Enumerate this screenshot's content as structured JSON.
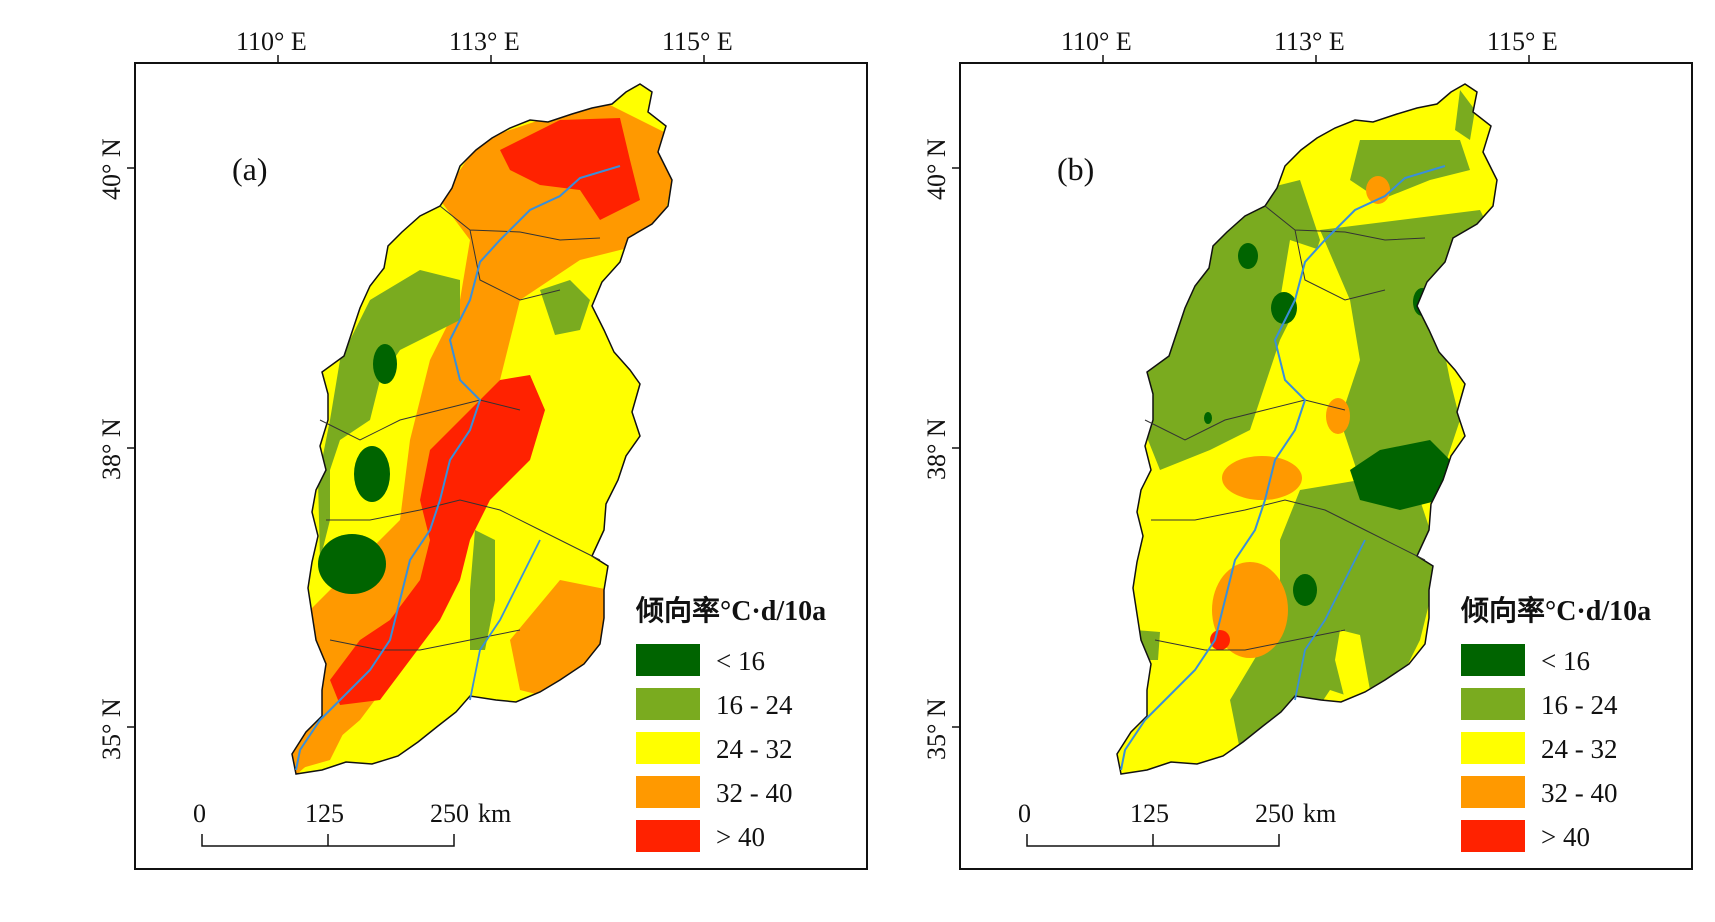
{
  "lon_ticks": [
    "110° E",
    "113° E",
    "115° E"
  ],
  "lat_ticks": [
    "40° N",
    "38° N",
    "35° N"
  ],
  "legend": {
    "title": "倾向率°C·d/10a",
    "items": [
      {
        "label": "< 16",
        "color": "#006400"
      },
      {
        "label": "16 - 24",
        "color": "#7aab1f"
      },
      {
        "label": "24 - 32",
        "color": "#ffff00"
      },
      {
        "label": "32 - 40",
        "color": "#ff9900"
      },
      {
        "label": "> 40",
        "color": "#ff2200"
      }
    ]
  },
  "scale_bar": {
    "labels": [
      "0",
      "125",
      "250"
    ],
    "unit": "km"
  },
  "panels": [
    {
      "label": "(a)"
    },
    {
      "label": "(b)"
    }
  ],
  "river_color": "#3a8fd9"
}
